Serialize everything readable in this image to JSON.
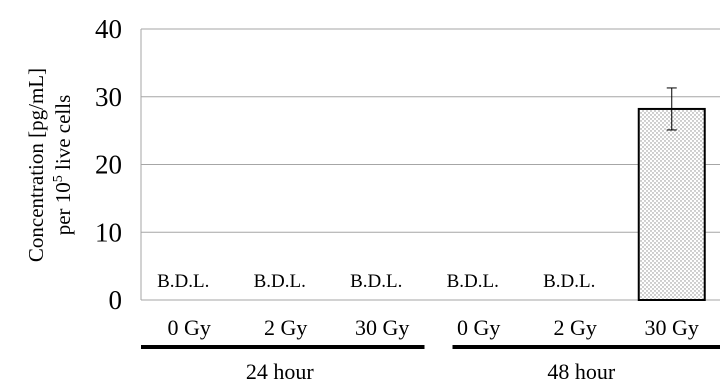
{
  "chart_data": {
    "type": "bar",
    "categories": [
      "0 Gy",
      "2 Gy",
      "30 Gy",
      "0 Gy",
      "2 Gy",
      "30 Gy"
    ],
    "groups": [
      {
        "label": "24 hour",
        "categories": [
          "0 Gy",
          "2 Gy",
          "30 Gy"
        ]
      },
      {
        "label": "48 hour",
        "categories": [
          "0 Gy",
          "2 Gy",
          "30 Gy"
        ]
      }
    ],
    "values": [
      null,
      null,
      null,
      null,
      null,
      28.2
    ],
    "error": [
      null,
      null,
      null,
      null,
      null,
      3.1
    ],
    "value_labels": [
      "B.D.L.",
      "B.D.L.",
      "B.D.L.",
      "B.D.L.",
      "B.D.L.",
      ""
    ],
    "ylabel_line1": "Concentration  [pg/mL]",
    "ylabel_line2_prefix": "per 10",
    "ylabel_line2_sup": "5",
    "ylabel_line2_suffix": " live cells",
    "ylim": [
      0,
      40
    ],
    "yticks": [
      0,
      10,
      20,
      30,
      40
    ],
    "grid": true,
    "colors": {
      "bar_fill": "#ffffff",
      "bar_dots": "#8a8a8a",
      "grid": "#a6a6a6",
      "axis": "#a6a6a6",
      "group_line": "#000000"
    }
  }
}
